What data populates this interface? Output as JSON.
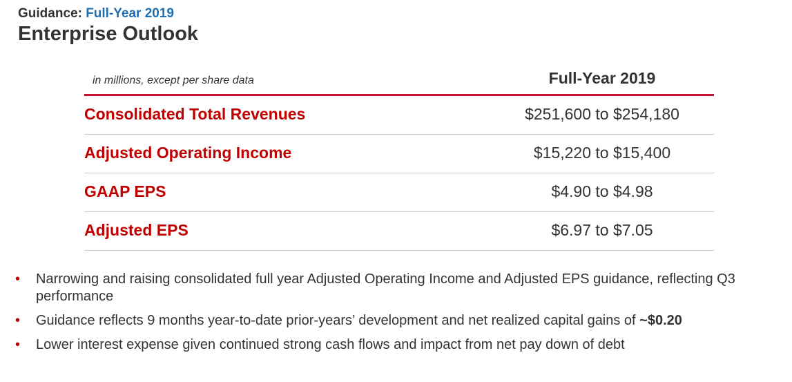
{
  "header": {
    "kicker_prefix": "Guidance:",
    "kicker_accent": "Full-Year 2019",
    "title": "Enterprise Outlook"
  },
  "table": {
    "note": "in millions, except per share data",
    "column_header": "Full-Year 2019",
    "rows": [
      {
        "label": "Consolidated Total Revenues",
        "value": "$251,600 to $254,180"
      },
      {
        "label": "Adjusted Operating Income",
        "value": "$15,220 to $15,400"
      },
      {
        "label": "GAAP EPS",
        "value": "$4.90 to $4.98"
      },
      {
        "label": "Adjusted EPS",
        "value": "$6.97 to $7.05"
      }
    ]
  },
  "bullets": [
    {
      "text": "Narrowing and raising consolidated full year Adjusted Operating Income and Adjusted EPS guidance, reflecting Q3 performance",
      "bold": ""
    },
    {
      "text": "Guidance reflects 9 months year-to-date prior-years’ development and net realized capital gains of ",
      "bold": "~$0.20"
    },
    {
      "text": "Lower interest expense given continued strong cash flows and impact from net pay down of debt",
      "bold": ""
    }
  ],
  "colors": {
    "accent_blue": "#1f6fb5",
    "label_red": "#c00000",
    "rule_red": "#c8102e",
    "text": "#333333"
  }
}
